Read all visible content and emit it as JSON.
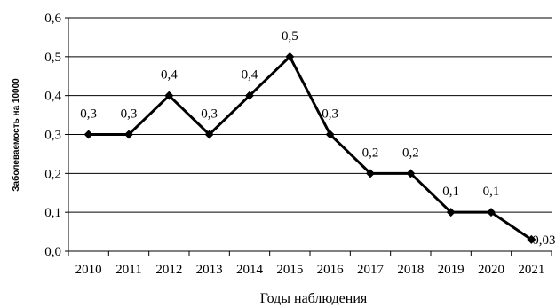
{
  "chart_data": {
    "type": "line",
    "title": "",
    "xlabel": "Годы наблюдения",
    "ylabel": "Заболеваемость на 10000",
    "ylim": [
      0,
      0.6
    ],
    "yticks": [
      "0,0",
      "0,1",
      "0,2",
      "0,3",
      "0,4",
      "0,5",
      "0,6"
    ],
    "grid": "horizontal",
    "legend": "none",
    "categories": [
      "2010",
      "2011",
      "2012",
      "2013",
      "2014",
      "2015",
      "2016",
      "2017",
      "2018",
      "2019",
      "2020",
      "2021"
    ],
    "series": [
      {
        "color": "#000000",
        "marker": "diamond",
        "values": [
          0.3,
          0.3,
          0.4,
          0.3,
          0.4,
          0.5,
          0.3,
          0.2,
          0.2,
          0.1,
          0.1,
          0.03
        ],
        "data_labels": [
          "0,3",
          "0,3",
          "0,4",
          "0,3",
          "0,4",
          "0,5",
          "0,3",
          "0,2",
          "0,2",
          "0,1",
          "0,1",
          "0,03"
        ]
      }
    ]
  }
}
